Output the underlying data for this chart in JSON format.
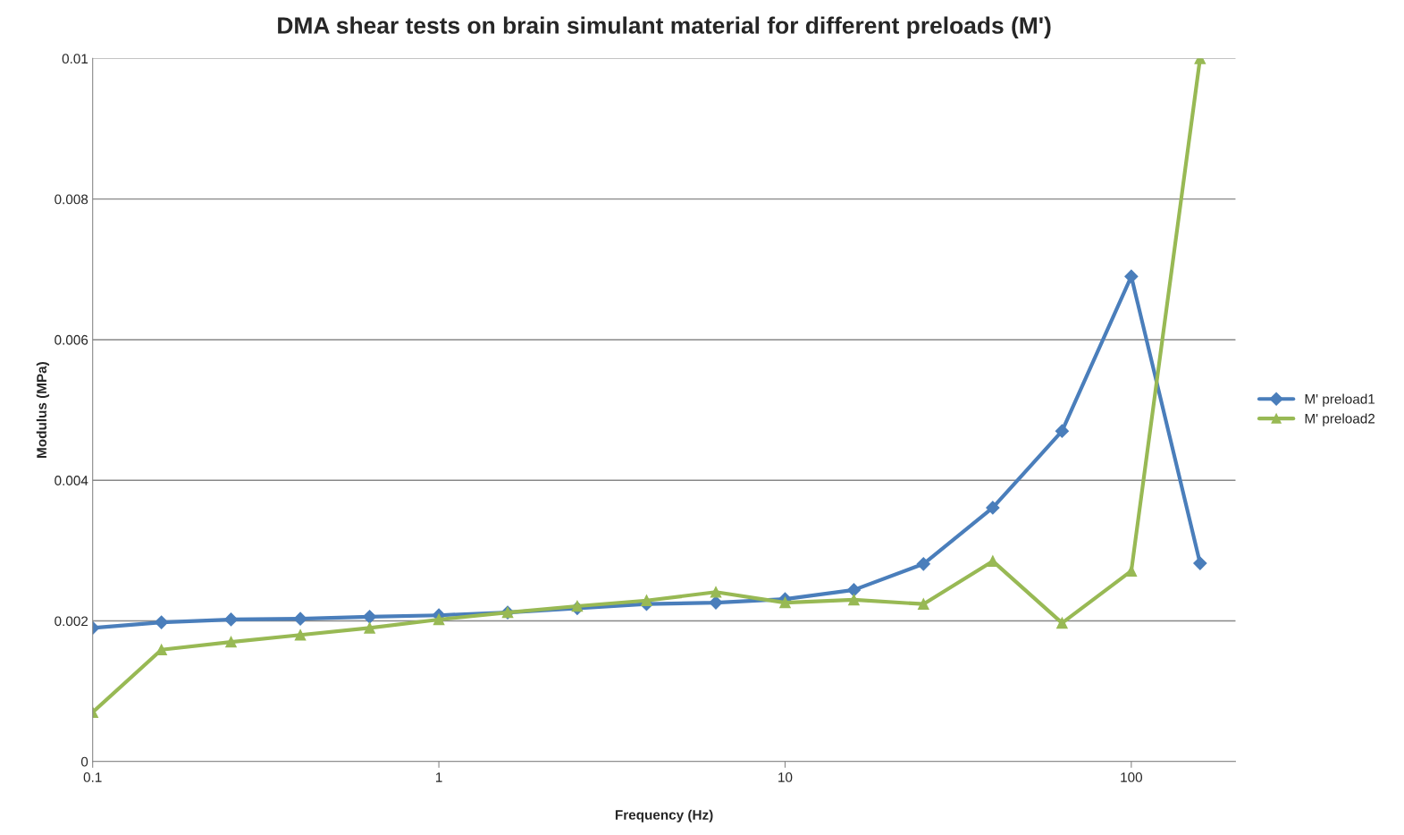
{
  "chart_data": {
    "type": "line",
    "title": "DMA shear tests on brain simulant material for different preloads (M')",
    "xlabel": "Frequency (Hz)",
    "ylabel": "Modulus (MPa)",
    "x": [
      0.1,
      0.158,
      0.251,
      0.398,
      0.631,
      1,
      1.58,
      2.51,
      3.98,
      6.31,
      10,
      15.8,
      25.1,
      39.8,
      63.1,
      100,
      158
    ],
    "series": [
      {
        "name": "M' preload1",
        "color": "#4a7ebb",
        "marker": "diamond",
        "values": [
          0.0019,
          0.00198,
          0.00202,
          0.00203,
          0.00206,
          0.00208,
          0.00212,
          0.00218,
          0.00224,
          0.00226,
          0.00231,
          0.00244,
          0.00281,
          0.00361,
          0.0047,
          0.0069,
          0.00282
        ]
      },
      {
        "name": "M' preload2",
        "color": "#98b954",
        "marker": "triangle",
        "values": [
          0.0007,
          0.00159,
          0.0017,
          0.0018,
          0.0019,
          0.00202,
          0.00212,
          0.00221,
          0.00229,
          0.00241,
          0.00226,
          0.0023,
          0.00224,
          0.00285,
          0.00197,
          0.00271,
          0.01
        ]
      }
    ],
    "log": "x",
    "xlim": [
      0.1,
      200
    ],
    "xticks": [
      {
        "value": 0.1,
        "label": "0.1"
      },
      1,
      10,
      100
    ],
    "ylim": [
      0,
      0.01
    ],
    "yticks": [
      0,
      {
        "value": 0.002,
        "label": "0.002"
      },
      {
        "value": 0.004,
        "label": "0.004"
      },
      {
        "value": 0.006,
        "label": "0.006"
      },
      {
        "value": 0.008,
        "label": "0.008"
      },
      {
        "value": 0.01,
        "label": "0.01"
      }
    ],
    "grid": "y",
    "legend": "right",
    "line_style": "solid"
  }
}
